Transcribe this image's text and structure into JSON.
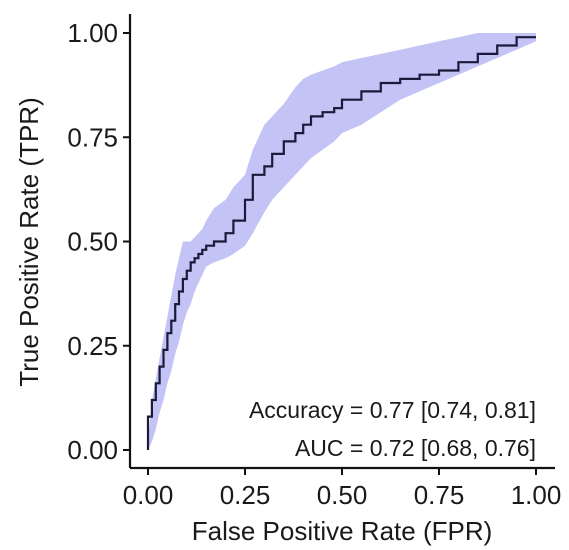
{
  "chart_data": {
    "type": "line",
    "xlabel": "False Positive Rate (FPR)",
    "ylabel": "True Positive Rate (TPR)",
    "xlim": [
      0,
      1
    ],
    "ylim": [
      0,
      1
    ],
    "x_ticks": [
      "0.00",
      "0.25",
      "0.50",
      "0.75",
      "1.00"
    ],
    "y_ticks": [
      "0.00",
      "0.25",
      "0.50",
      "0.75",
      "1.00"
    ],
    "grid": false,
    "annotations": [
      "Accuracy = 0.77 [0.74, 0.81]",
      "AUC = 0.72 [0.68, 0.76]"
    ],
    "series": [
      {
        "x": [
          0.0,
          0.01,
          0.02,
          0.03,
          0.04,
          0.05,
          0.06,
          0.07,
          0.08,
          0.09,
          0.1,
          0.11,
          0.12,
          0.13,
          0.14,
          0.15,
          0.17,
          0.2,
          0.22,
          0.25,
          0.27,
          0.3,
          0.32,
          0.35,
          0.38,
          0.4,
          0.42,
          0.45,
          0.48,
          0.5,
          0.55,
          0.6,
          0.65,
          0.7,
          0.75,
          0.8,
          0.85,
          0.9,
          0.95,
          1.0
        ],
        "y": [
          0.0,
          0.08,
          0.12,
          0.16,
          0.2,
          0.24,
          0.28,
          0.31,
          0.35,
          0.38,
          0.41,
          0.43,
          0.45,
          0.46,
          0.47,
          0.48,
          0.49,
          0.5,
          0.52,
          0.55,
          0.6,
          0.66,
          0.68,
          0.71,
          0.74,
          0.76,
          0.78,
          0.8,
          0.81,
          0.82,
          0.84,
          0.86,
          0.88,
          0.89,
          0.9,
          0.91,
          0.93,
          0.95,
          0.97,
          0.99
        ],
        "lower": [
          0.0,
          0.02,
          0.05,
          0.09,
          0.12,
          0.16,
          0.19,
          0.23,
          0.26,
          0.3,
          0.33,
          0.35,
          0.38,
          0.4,
          0.42,
          0.44,
          0.45,
          0.46,
          0.47,
          0.49,
          0.52,
          0.57,
          0.6,
          0.63,
          0.66,
          0.68,
          0.7,
          0.72,
          0.74,
          0.76,
          0.78,
          0.81,
          0.84,
          0.86,
          0.88,
          0.9,
          0.92,
          0.94,
          0.96,
          0.98
        ],
        "upper": [
          0.02,
          0.12,
          0.17,
          0.22,
          0.27,
          0.32,
          0.37,
          0.42,
          0.46,
          0.5,
          0.5,
          0.5,
          0.51,
          0.52,
          0.53,
          0.55,
          0.58,
          0.6,
          0.63,
          0.66,
          0.72,
          0.78,
          0.8,
          0.83,
          0.87,
          0.89,
          0.9,
          0.91,
          0.92,
          0.93,
          0.94,
          0.95,
          0.96,
          0.97,
          0.98,
          0.99,
          1.0,
          1.0,
          1.0,
          1.0
        ]
      }
    ],
    "colors": {
      "line": "#1a1a3a",
      "band": "#b8b8f5",
      "axis": "#111111"
    }
  }
}
